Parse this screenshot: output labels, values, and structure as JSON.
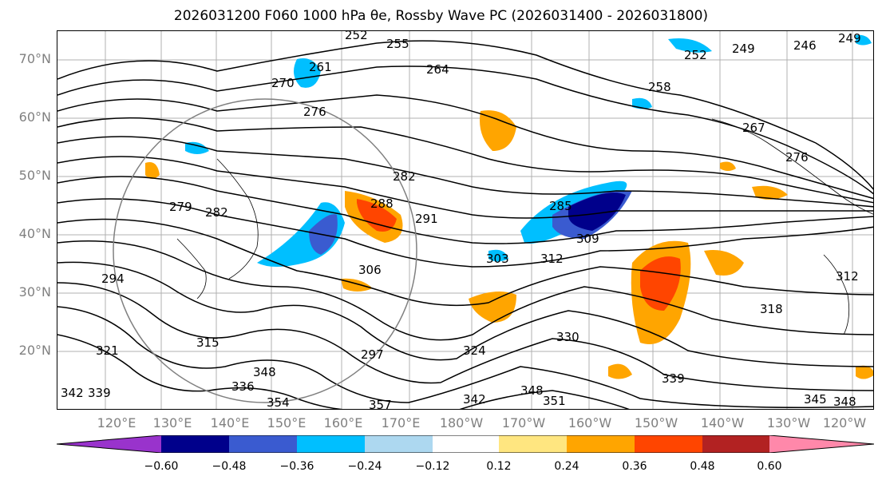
{
  "title": "2026031200 F060 1000 hPa θe, Rossby Wave PC (2026031400 - 2026031800)",
  "map": {
    "lat_labels": [
      "70°N",
      "60°N",
      "50°N",
      "40°N",
      "30°N",
      "20°N"
    ],
    "lon_labels": [
      "120°E",
      "130°E",
      "140°E",
      "150°E",
      "160°E",
      "170°E",
      "180°W",
      "170°W",
      "160°W",
      "150°W",
      "140°W",
      "130°W",
      "120°W"
    ],
    "contour_labels": [
      "252",
      "255",
      "249",
      "246",
      "249",
      "252",
      "258",
      "264",
      "261",
      "270",
      "276",
      "267",
      "276",
      "279",
      "282",
      "282",
      "288",
      "291",
      "285",
      "303",
      "306",
      "312",
      "309",
      "315",
      "318",
      "312",
      "324",
      "330",
      "336",
      "339",
      "348",
      "348",
      "351",
      "354",
      "357",
      "342",
      "345",
      "348",
      "321",
      "294",
      "297",
      "342",
      "339"
    ],
    "colors": {
      "positive_strong": "#b22222",
      "positive_mid": "#ff4500",
      "positive_weak": "#ffa500",
      "positive_faint": "#ffe680",
      "negative_faint": "#add8f0",
      "negative_weak": "#00bfff",
      "negative_mid": "#3a5bd0",
      "negative_strong": "#00008b",
      "contour": "#000000",
      "circle": "#808080"
    }
  },
  "colorbar": {
    "ticks": [
      "−0.60",
      "−0.48",
      "−0.36",
      "−0.24",
      "−0.12",
      "0.12",
      "0.24",
      "0.36",
      "0.48",
      "0.60"
    ],
    "bins": [
      "#9933cc",
      "#00008b",
      "#3a5bd0",
      "#00bfff",
      "#add8f0",
      "#ffffff",
      "#ffe680",
      "#ffa500",
      "#ff4500",
      "#b22222",
      "#ff88aa"
    ]
  }
}
